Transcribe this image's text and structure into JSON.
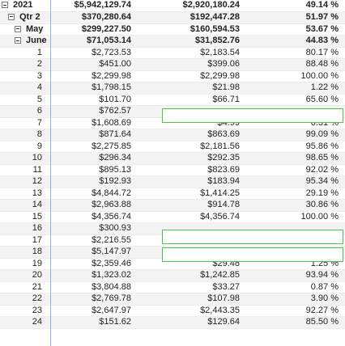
{
  "header_rows": [
    {
      "label": "2021",
      "indent": 2,
      "v1": "$5,942,129.74",
      "v2": "$2,920,180.24",
      "v3": "49.14 %"
    },
    {
      "label": "Qtr 2",
      "indent": 10,
      "v1": "$370,280.64",
      "v2": "$192,447.28",
      "v3": "51.97 %"
    },
    {
      "label": "May",
      "indent": 18,
      "v1": "$299,227.50",
      "v2": "$160,594.53",
      "v3": "53.67 %"
    },
    {
      "label": "June",
      "indent": 18,
      "v1": "$71,053.14",
      "v2": "$31,852.76",
      "v3": "44.83 %"
    }
  ],
  "day_rows": [
    {
      "day": "1",
      "v1": "$2,723.53",
      "v2": "$2,183.54",
      "v3": "80.17 %"
    },
    {
      "day": "2",
      "v1": "$451.00",
      "v2": "$399.06",
      "v3": "88.48 %"
    },
    {
      "day": "3",
      "v1": "$2,299.98",
      "v2": "$2,299.98",
      "v3": "100.00 %"
    },
    {
      "day": "4",
      "v1": "$1,798.15",
      "v2": "$21.98",
      "v3": "1.22 %"
    },
    {
      "day": "5",
      "v1": "$101.70",
      "v2": "$66.71",
      "v3": "65.60 %"
    },
    {
      "day": "6",
      "v1": "$762.57",
      "v2": "",
      "v3": ""
    },
    {
      "day": "7",
      "v1": "$1,608.69",
      "v2": "$4.99",
      "v3": "0.31 %"
    },
    {
      "day": "8",
      "v1": "$871.64",
      "v2": "$863.69",
      "v3": "99.09 %"
    },
    {
      "day": "9",
      "v1": "$2,275.85",
      "v2": "$2,181.56",
      "v3": "95.86 %"
    },
    {
      "day": "10",
      "v1": "$296.34",
      "v2": "$292.35",
      "v3": "98.65 %"
    },
    {
      "day": "11",
      "v1": "$895.13",
      "v2": "$823.69",
      "v3": "92.02 %"
    },
    {
      "day": "12",
      "v1": "$192.93",
      "v2": "$183.94",
      "v3": "95.34 %"
    },
    {
      "day": "13",
      "v1": "$4,844.72",
      "v2": "$1,414.25",
      "v3": "29.19 %"
    },
    {
      "day": "14",
      "v1": "$2,963.88",
      "v2": "$914.78",
      "v3": "30.86 %"
    },
    {
      "day": "15",
      "v1": "$4,356.74",
      "v2": "$4,356.74",
      "v3": "100.00 %"
    },
    {
      "day": "16",
      "v1": "$300.93",
      "v2": "",
      "v3": ""
    },
    {
      "day": "17",
      "v1": "$2,216.55",
      "v2": "",
      "v3": ""
    },
    {
      "day": "18",
      "v1": "$5,147.97",
      "v2": "$1,534.43",
      "v3": "29.81 %"
    },
    {
      "day": "19",
      "v1": "$2,359.46",
      "v2": "$29.48",
      "v3": "1.25 %"
    },
    {
      "day": "20",
      "v1": "$1,323.02",
      "v2": "$1,242.85",
      "v3": "93.94 %"
    },
    {
      "day": "21",
      "v1": "$3,804.88",
      "v2": "$33.27",
      "v3": "0.87 %"
    },
    {
      "day": "22",
      "v1": "$2,769.78",
      "v2": "$107.98",
      "v3": "3.90 %"
    },
    {
      "day": "23",
      "v1": "$2,647.97",
      "v2": "$2,443.35",
      "v3": "92.27 %"
    },
    {
      "day": "24",
      "v1": "$151.62",
      "v2": "$129.64",
      "v3": "85.50 %"
    }
  ]
}
